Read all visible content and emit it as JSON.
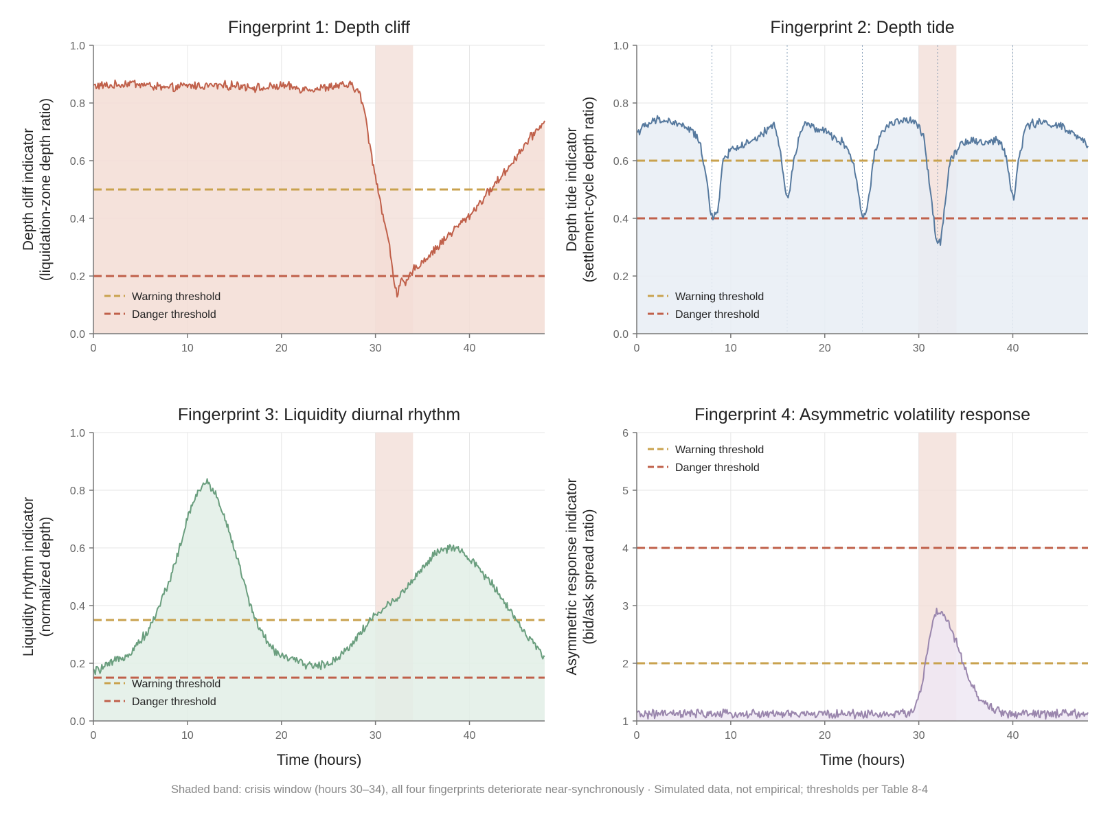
{
  "caption": "Shaded band: crisis window (hours 30–34), all four fingerprints deteriorate near-synchronously  ·  Simulated data, not empirical; thresholds per Table 8-4",
  "colors": {
    "warning": "#c9a24e",
    "danger": "#c0604a",
    "crisis_band": "#f2dcd6",
    "grid": "#e6e6e6",
    "axis": "#777777"
  },
  "legend": {
    "warning_label": "Warning threshold",
    "danger_label": "Danger threshold"
  },
  "chart_data": [
    {
      "type": "area",
      "title": "Fingerprint 1: Depth cliff",
      "xlabel": "",
      "ylabel": [
        "Depth cliff indicator",
        "(liquidation-zone depth ratio)"
      ],
      "xlim": [
        0,
        48
      ],
      "ylim": [
        0,
        1
      ],
      "xticks": [
        0,
        10,
        20,
        30,
        40
      ],
      "yticks": [
        0.0,
        0.2,
        0.4,
        0.6,
        0.8,
        1.0
      ],
      "ytick_labels": [
        "0.0",
        "0.2",
        "0.4",
        "0.6",
        "0.8",
        "1.0"
      ],
      "color": "#c0604a",
      "fill": "#f3ddd5",
      "warning": 0.5,
      "danger": 0.2,
      "crisis_window": [
        30,
        34
      ],
      "legend_position": "lower-left",
      "series_points": [
        [
          0,
          0.86
        ],
        [
          2,
          0.86
        ],
        [
          4,
          0.87
        ],
        [
          6,
          0.86
        ],
        [
          8,
          0.85
        ],
        [
          10,
          0.86
        ],
        [
          12,
          0.86
        ],
        [
          14,
          0.86
        ],
        [
          16,
          0.86
        ],
        [
          18,
          0.85
        ],
        [
          20,
          0.86
        ],
        [
          22,
          0.85
        ],
        [
          24,
          0.85
        ],
        [
          26,
          0.86
        ],
        [
          27.5,
          0.86
        ],
        [
          28.2,
          0.84
        ],
        [
          28.8,
          0.78
        ],
        [
          29.4,
          0.65
        ],
        [
          30,
          0.55
        ],
        [
          30.5,
          0.46
        ],
        [
          31,
          0.38
        ],
        [
          31.5,
          0.3
        ],
        [
          32,
          0.18
        ],
        [
          32.3,
          0.14
        ],
        [
          32.7,
          0.18
        ],
        [
          33.2,
          0.17
        ],
        [
          34,
          0.22
        ],
        [
          35,
          0.25
        ],
        [
          36,
          0.28
        ],
        [
          38,
          0.35
        ],
        [
          40,
          0.41
        ],
        [
          42,
          0.49
        ],
        [
          44,
          0.57
        ],
        [
          46,
          0.66
        ],
        [
          48,
          0.74
        ]
      ],
      "vlines": []
    },
    {
      "type": "area",
      "title": "Fingerprint 2: Depth tide",
      "xlabel": "",
      "ylabel": [
        "Depth tide indicator",
        "(settlement-cycle depth ratio)"
      ],
      "xlim": [
        0,
        48
      ],
      "ylim": [
        0,
        1
      ],
      "xticks": [
        0,
        10,
        20,
        30,
        40
      ],
      "yticks": [
        0.0,
        0.2,
        0.4,
        0.6,
        0.8,
        1.0
      ],
      "ytick_labels": [
        "0.0",
        "0.2",
        "0.4",
        "0.6",
        "0.8",
        "1.0"
      ],
      "color": "#56799e",
      "fill": "#e7edf5",
      "warning": 0.6,
      "danger": 0.4,
      "crisis_window": [
        30,
        34
      ],
      "legend_position": "lower-left",
      "series_points": [
        [
          0,
          0.7
        ],
        [
          1,
          0.72
        ],
        [
          2,
          0.74
        ],
        [
          3,
          0.74
        ],
        [
          4,
          0.73
        ],
        [
          5,
          0.72
        ],
        [
          6,
          0.7
        ],
        [
          6.8,
          0.65
        ],
        [
          7.4,
          0.55
        ],
        [
          7.8,
          0.43
        ],
        [
          8.1,
          0.39
        ],
        [
          8.6,
          0.43
        ],
        [
          9.2,
          0.6
        ],
        [
          10,
          0.64
        ],
        [
          11,
          0.65
        ],
        [
          12,
          0.66
        ],
        [
          13,
          0.68
        ],
        [
          14,
          0.71
        ],
        [
          14.7,
          0.73
        ],
        [
          15.3,
          0.62
        ],
        [
          15.8,
          0.5
        ],
        [
          16.1,
          0.46
        ],
        [
          16.6,
          0.58
        ],
        [
          17.4,
          0.7
        ],
        [
          18,
          0.73
        ],
        [
          19,
          0.71
        ],
        [
          20,
          0.7
        ],
        [
          21,
          0.68
        ],
        [
          22,
          0.66
        ],
        [
          22.8,
          0.62
        ],
        [
          23.4,
          0.53
        ],
        [
          23.9,
          0.42
        ],
        [
          24.2,
          0.4
        ],
        [
          24.6,
          0.46
        ],
        [
          25.3,
          0.62
        ],
        [
          26,
          0.7
        ],
        [
          27,
          0.73
        ],
        [
          28,
          0.74
        ],
        [
          29,
          0.74
        ],
        [
          30,
          0.72
        ],
        [
          30.5,
          0.68
        ],
        [
          31,
          0.56
        ],
        [
          31.5,
          0.42
        ],
        [
          31.9,
          0.32
        ],
        [
          32.3,
          0.32
        ],
        [
          32.8,
          0.45
        ],
        [
          33.3,
          0.6
        ],
        [
          34,
          0.64
        ],
        [
          35,
          0.67
        ],
        [
          36,
          0.67
        ],
        [
          37,
          0.66
        ],
        [
          38,
          0.67
        ],
        [
          38.8,
          0.66
        ],
        [
          39.4,
          0.6
        ],
        [
          39.8,
          0.5
        ],
        [
          40.1,
          0.46
        ],
        [
          40.6,
          0.6
        ],
        [
          41.3,
          0.71
        ],
        [
          42,
          0.73
        ],
        [
          43,
          0.73
        ],
        [
          44,
          0.73
        ],
        [
          45,
          0.72
        ],
        [
          46,
          0.7
        ],
        [
          47,
          0.68
        ],
        [
          48,
          0.65
        ]
      ],
      "vlines": [
        8,
        16,
        24,
        32,
        40
      ]
    },
    {
      "type": "area",
      "title": "Fingerprint 3: Liquidity diurnal rhythm",
      "xlabel": "Time (hours)",
      "ylabel": [
        "Liquidity rhythm indicator",
        "(normalized depth)"
      ],
      "xlim": [
        0,
        48
      ],
      "ylim": [
        0,
        1
      ],
      "xticks": [
        0,
        10,
        20,
        30,
        40
      ],
      "yticks": [
        0.0,
        0.2,
        0.4,
        0.6,
        0.8,
        1.0
      ],
      "ytick_labels": [
        "0.0",
        "0.2",
        "0.4",
        "0.6",
        "0.8",
        "1.0"
      ],
      "color": "#6a9e7e",
      "fill": "#e2efe6",
      "warning": 0.35,
      "danger": 0.15,
      "crisis_window": [
        30,
        34
      ],
      "legend_position": "lower-left",
      "series_points": [
        [
          0,
          0.17
        ],
        [
          2,
          0.2
        ],
        [
          4,
          0.24
        ],
        [
          6,
          0.32
        ],
        [
          8,
          0.48
        ],
        [
          9,
          0.58
        ],
        [
          10,
          0.7
        ],
        [
          11,
          0.79
        ],
        [
          12,
          0.83
        ],
        [
          13,
          0.79
        ],
        [
          14,
          0.7
        ],
        [
          15,
          0.6
        ],
        [
          16,
          0.48
        ],
        [
          17,
          0.37
        ],
        [
          18,
          0.3
        ],
        [
          19,
          0.25
        ],
        [
          20,
          0.23
        ],
        [
          22,
          0.2
        ],
        [
          24,
          0.19
        ],
        [
          25,
          0.2
        ],
        [
          26,
          0.22
        ],
        [
          27,
          0.25
        ],
        [
          28,
          0.29
        ],
        [
          29,
          0.33
        ],
        [
          30,
          0.37
        ],
        [
          31,
          0.39
        ],
        [
          32,
          0.42
        ],
        [
          33,
          0.45
        ],
        [
          34,
          0.49
        ],
        [
          35,
          0.53
        ],
        [
          36,
          0.57
        ],
        [
          37,
          0.59
        ],
        [
          38,
          0.6
        ],
        [
          39,
          0.59
        ],
        [
          40,
          0.56
        ],
        [
          41,
          0.53
        ],
        [
          42,
          0.49
        ],
        [
          43,
          0.45
        ],
        [
          44,
          0.4
        ],
        [
          45,
          0.35
        ],
        [
          46,
          0.3
        ],
        [
          47,
          0.26
        ],
        [
          48,
          0.22
        ]
      ],
      "vlines": []
    },
    {
      "type": "area",
      "title": "Fingerprint 4: Asymmetric volatility response",
      "xlabel": "Time (hours)",
      "ylabel": [
        "Asymmetric response indicator",
        "(bid/ask spread ratio)"
      ],
      "xlim": [
        0,
        48
      ],
      "ylim": [
        1,
        6
      ],
      "xticks": [
        0,
        10,
        20,
        30,
        40
      ],
      "yticks": [
        1,
        2,
        3,
        4,
        5,
        6
      ],
      "ytick_labels": [
        "1",
        "2",
        "3",
        "4",
        "5",
        "6"
      ],
      "color": "#9a86ad",
      "fill": "#efe8f3",
      "warning": 2,
      "danger": 4,
      "crisis_window": [
        30,
        34
      ],
      "legend_position": "upper-left",
      "series_points": [
        [
          0,
          1.12
        ],
        [
          4,
          1.12
        ],
        [
          8,
          1.12
        ],
        [
          12,
          1.12
        ],
        [
          16,
          1.12
        ],
        [
          20,
          1.12
        ],
        [
          24,
          1.12
        ],
        [
          28,
          1.12
        ],
        [
          29,
          1.15
        ],
        [
          29.7,
          1.25
        ],
        [
          30.3,
          1.6
        ],
        [
          30.8,
          2.1
        ],
        [
          31.3,
          2.6
        ],
        [
          31.9,
          2.88
        ],
        [
          32.6,
          2.85
        ],
        [
          33.3,
          2.65
        ],
        [
          34,
          2.35
        ],
        [
          34.7,
          2.0
        ],
        [
          35.4,
          1.7
        ],
        [
          36.2,
          1.45
        ],
        [
          37,
          1.3
        ],
        [
          38,
          1.2
        ],
        [
          39,
          1.14
        ],
        [
          40,
          1.12
        ],
        [
          44,
          1.12
        ],
        [
          48,
          1.12
        ]
      ],
      "vlines": []
    }
  ]
}
